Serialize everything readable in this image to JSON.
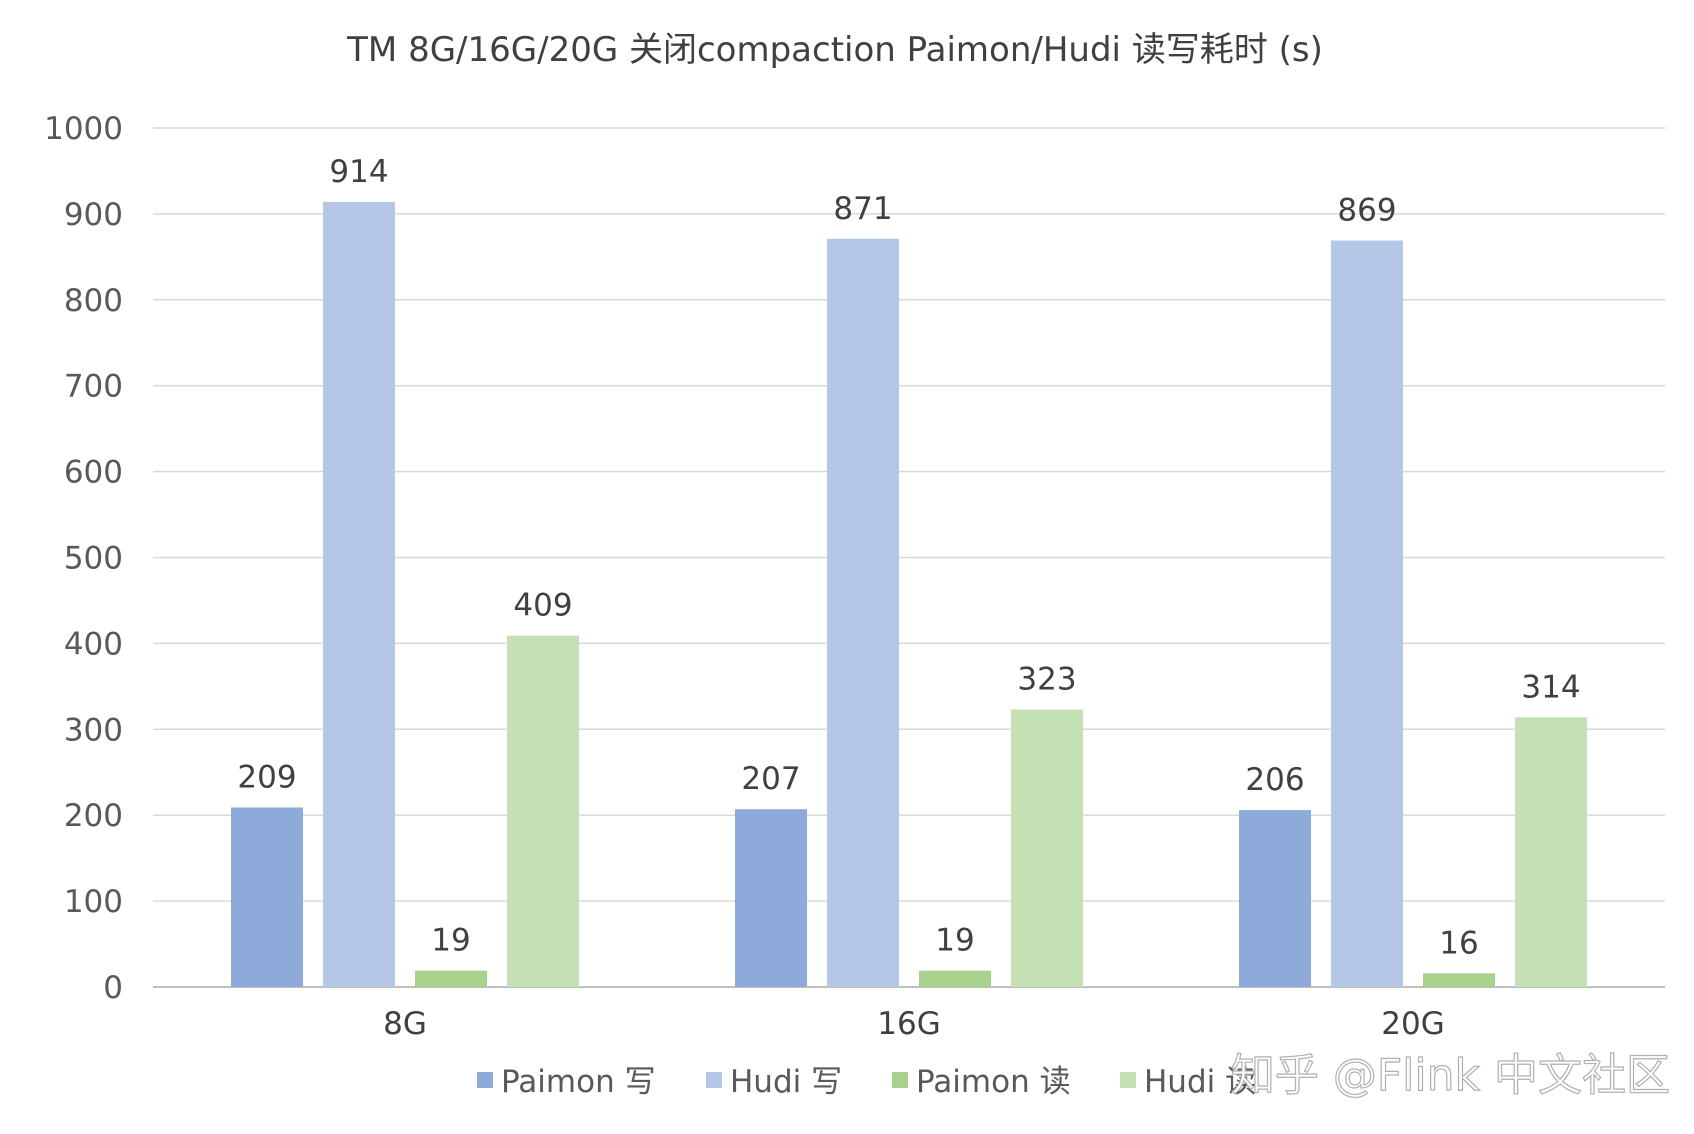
{
  "chart_data": {
    "type": "bar",
    "title": "TM 8G/16G/20G 关闭compaction Paimon/Hudi 读写耗时 (s)",
    "categories": [
      "8G",
      "16G",
      "20G"
    ],
    "series": [
      {
        "name": "Paimon 写",
        "color": "#8eaadb",
        "values": [
          209,
          207,
          206
        ]
      },
      {
        "name": "Hudi 写",
        "color": "#b4c7e7",
        "values": [
          914,
          871,
          869
        ]
      },
      {
        "name": "Paimon 读",
        "color": "#a9d18e",
        "values": [
          19,
          19,
          16
        ]
      },
      {
        "name": "Hudi 读",
        "color": "#c5e0b4",
        "values": [
          409,
          323,
          314
        ]
      }
    ],
    "ylim": [
      0,
      1000
    ],
    "yticks": [
      0,
      100,
      200,
      300,
      400,
      500,
      600,
      700,
      800,
      900,
      1000
    ],
    "grid": true,
    "legend_position": "bottom",
    "xlabel": "",
    "ylabel": ""
  },
  "watermark": "知乎 @Flink 中文社区"
}
